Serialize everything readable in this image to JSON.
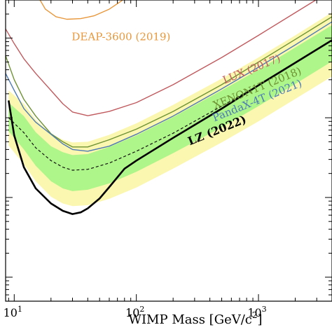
{
  "chart_data": {
    "type": "line",
    "title": "",
    "xlabel_main": "WIMP Mass [GeV/c",
    "xlabel_sup": "2",
    "xlabel_end": "]",
    "ylabel": "",
    "x_scale": "log",
    "y_scale": "log",
    "xlim": [
      8.5,
      4000
    ],
    "ylim": [
      5e-49,
      3e-45
    ],
    "x_ticks": [
      {
        "value": 10,
        "base": "10",
        "exp": "1"
      },
      {
        "value": 100,
        "base": "10",
        "exp": "2"
      },
      {
        "value": 1000,
        "base": "10",
        "exp": "3"
      }
    ],
    "bands": [
      {
        "name": "sensitivity-2sigma",
        "color": "#fbf7b0",
        "x": [
          9,
          12,
          15,
          20,
          25,
          30,
          40,
          60,
          100,
          200,
          500,
          1000,
          2000,
          4000
        ],
        "upper": [
          2.2e-46,
          1.5e-46,
          9.5e-47,
          6.3e-47,
          5.3e-47,
          4.9e-47,
          5e-47,
          6.1e-47,
          8.5e-47,
          1.45e-46,
          3.1e-46,
          5.7e-46,
          1.08e-45,
          2.1e-45
        ],
        "lower": [
          4.5e-47,
          2.6e-47,
          1.6e-47,
          1.02e-47,
          8.4e-48,
          7.8e-48,
          8e-48,
          9.6e-48,
          1.33e-47,
          2.3e-47,
          4.9e-47,
          9e-47,
          1.72e-46,
          3.3e-46
        ]
      },
      {
        "name": "sensitivity-1sigma",
        "color": "#aef58a",
        "x": [
          9,
          12,
          15,
          20,
          25,
          30,
          40,
          60,
          100,
          200,
          500,
          1000,
          2000,
          4000
        ],
        "upper": [
          1.55e-46,
          1.05e-46,
          6.6e-47,
          4.4e-47,
          3.7e-47,
          3.4e-47,
          3.5e-47,
          4.3e-47,
          6e-47,
          1.02e-46,
          2.2e-46,
          4e-46,
          7.6e-46,
          1.45e-45
        ],
        "lower": [
          6.8e-47,
          4e-47,
          2.5e-47,
          1.6e-47,
          1.3e-47,
          1.2e-47,
          1.25e-47,
          1.5e-47,
          2.1e-47,
          3.6e-47,
          7.6e-47,
          1.4e-46,
          2.65e-46,
          5.1e-46
        ]
      }
    ],
    "series": [
      {
        "name": "DEAP-3600 (2019)",
        "color": "#e8973a",
        "width": 1.4,
        "dash": "",
        "x": [
          15.5,
          18,
          22,
          27,
          35,
          45,
          60,
          75,
          90
        ],
        "y": [
          3.4e-45,
          2.3e-45,
          1.85e-45,
          1.72e-45,
          1.75e-45,
          1.9e-45,
          2.3e-45,
          2.9e-45,
          3.6e-45
        ]
      },
      {
        "name": "LUX (2017)",
        "color": "#c15a5e",
        "width": 1.4,
        "dash": "",
        "x": [
          8.5,
          10,
          12,
          15,
          20,
          25,
          30,
          40,
          60,
          100,
          200,
          500,
          1000,
          2000,
          4000
        ],
        "y": [
          1.3e-45,
          8.5e-46,
          5.5e-46,
          3.6e-46,
          2.2e-46,
          1.5e-46,
          1.18e-46,
          1.06e-46,
          1.2e-46,
          1.55e-46,
          2.6e-46,
          5.7e-46,
          1.08e-45,
          2.08e-45,
          4e-45
        ]
      },
      {
        "name": "XENON1T (2018)",
        "color": "#6e9233",
        "width": 1.4,
        "dash": "",
        "x": [
          8.5,
          10,
          12,
          15,
          20,
          25,
          30,
          40,
          60,
          100,
          200,
          500,
          1000,
          2000,
          4000
        ],
        "y": [
          6e-46,
          3e-46,
          1.7e-46,
          1.05e-46,
          6.3e-47,
          5e-47,
          4.3e-47,
          4.3e-47,
          5.3e-47,
          7.2e-47,
          1.2e-46,
          2.6e-46,
          5e-46,
          9.6e-46,
          1.85e-45
        ]
      },
      {
        "name": "PandaX-4T (2021)",
        "color": "#4e7bb5",
        "width": 1.4,
        "dash": "",
        "x": [
          8.5,
          10,
          12,
          15,
          20,
          25,
          30,
          40,
          60,
          100,
          200,
          500,
          1000,
          2000,
          4000
        ],
        "y": [
          3.6e-46,
          2.2e-46,
          1.3e-46,
          8.8e-47,
          6.2e-47,
          4.7e-47,
          4e-47,
          3.8e-47,
          4.4e-47,
          6.2e-47,
          1.05e-46,
          2.3e-46,
          4.3e-46,
          8.2e-46,
          1.6e-45
        ]
      },
      {
        "name": "",
        "color": "#111111",
        "width": 1.2,
        "dash": "4,3",
        "x": [
          9,
          12,
          15,
          20,
          25,
          30,
          40,
          60,
          100,
          200,
          500,
          1000,
          2000,
          4000
        ],
        "y": [
          1e-46,
          6.5e-47,
          4.2e-47,
          2.9e-47,
          2.4e-47,
          2.2e-47,
          2.25e-47,
          2.7e-47,
          3.8e-47,
          6.4e-47,
          1.4e-46,
          2.55e-46,
          4.9e-46,
          9.4e-46
        ]
      },
      {
        "name": "LZ (2022)",
        "color": "#000000",
        "width": 2.6,
        "dash": "",
        "x": [
          9,
          10,
          12,
          15,
          20,
          25,
          30,
          35,
          40,
          50,
          60,
          80,
          100,
          200,
          500,
          1000,
          2000,
          4000
        ],
        "y": [
          1.65e-46,
          6e-47,
          2.4e-47,
          1.3e-47,
          8.4e-48,
          6.8e-48,
          6.2e-48,
          6.5e-48,
          7.3e-48,
          9.7e-48,
          1.35e-47,
          2.3e-47,
          2.9e-47,
          5.6e-47,
          1.3e-46,
          2.55e-46,
          4.9e-46,
          9.4e-46
        ]
      }
    ],
    "labels": [
      {
        "series": "DEAP-3600 (2019)",
        "text": "DEAP-3600 (2019)",
        "color": "#e8973a",
        "at_x": 75,
        "at_y": 9.4e-46,
        "rotate": 0,
        "bold": false,
        "size": 15
      },
      {
        "series": "LUX (2017)",
        "text": "LUX (2017)",
        "color": "#c15a5e",
        "at_x": 900,
        "at_y": 3.7e-46,
        "rotate": -22,
        "bold": false,
        "size": 15
      },
      {
        "series": "XENON1T (2018)",
        "text": "XENON1T (2018)",
        "color": "#6e9233",
        "at_x": 1000,
        "at_y": 2.15e-46,
        "rotate": -22,
        "bold": false,
        "size": 15
      },
      {
        "series": "PandaX-4T (2021)",
        "text": "PandaX-4T (2021)",
        "color": "#4e7bb5",
        "at_x": 1000,
        "at_y": 1.5e-46,
        "rotate": -22,
        "bold": false,
        "size": 15
      },
      {
        "series": "LZ (2022)",
        "text": "LZ (2022)",
        "color": "#000000",
        "at_x": 470,
        "at_y": 6.3e-47,
        "rotate": -22,
        "bold": true,
        "size": 16
      }
    ],
    "grid": false,
    "legend": "none"
  }
}
